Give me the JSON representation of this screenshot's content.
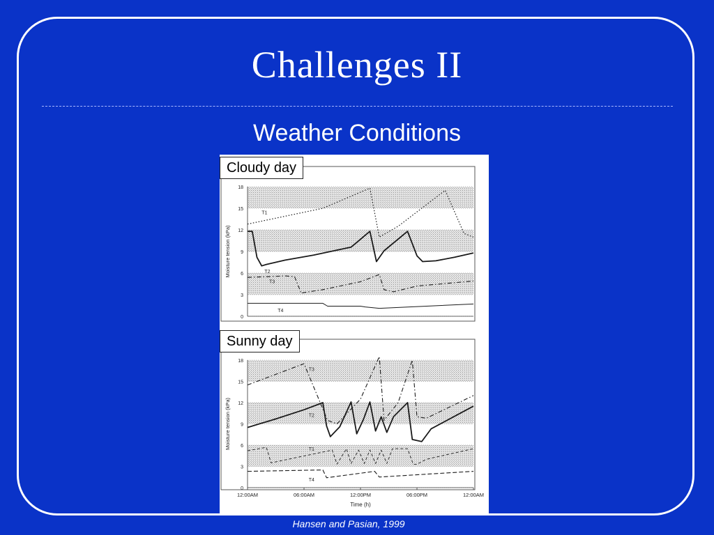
{
  "slide": {
    "title": "Challenges II",
    "subtitle": "Weather Conditions",
    "citation": "Hansen and Pasian, 1999"
  },
  "chart_data": [
    {
      "type": "line",
      "tag": "Cloudy day",
      "ylabel": "Moisture tension (kPa)",
      "ylim": [
        0,
        18
      ],
      "yticks": [
        0,
        3,
        6,
        9,
        12,
        15,
        18
      ],
      "xlim": [
        0,
        24
      ],
      "series": [
        {
          "name": "T1",
          "style": "dotted",
          "x": [
            0,
            8,
            13,
            14,
            16,
            21,
            23,
            24
          ],
          "y": [
            12.8,
            15,
            17.8,
            11,
            12.5,
            17.5,
            11.5,
            11
          ]
        },
        {
          "name": "T2",
          "style": "solid",
          "x": [
            0,
            0.5,
            1,
            1.5,
            2,
            4,
            7,
            11,
            13,
            13.7,
            14.5,
            17,
            18,
            18.6,
            20,
            22,
            24
          ],
          "y": [
            11.8,
            11.8,
            8.2,
            7,
            7.2,
            7.8,
            8.5,
            9.6,
            11.8,
            7.6,
            9.1,
            11.8,
            8.4,
            7.6,
            7.7,
            8.2,
            8.8
          ]
        },
        {
          "name": "T3",
          "style": "dashdot",
          "x": [
            0,
            4,
            5,
            5.7,
            6,
            8,
            12,
            14,
            14.5,
            15.5,
            18,
            24
          ],
          "y": [
            5.4,
            5.6,
            5.5,
            3.2,
            3.3,
            3.7,
            4.8,
            5.8,
            3.7,
            3.4,
            4.2,
            4.9
          ]
        },
        {
          "name": "T4",
          "style": "solid-thin",
          "x": [
            0,
            8,
            8.5,
            12,
            12.5,
            14,
            24
          ],
          "y": [
            1.8,
            1.8,
            1.4,
            1.4,
            1.3,
            1.1,
            1.7
          ]
        }
      ]
    },
    {
      "type": "line",
      "tag": "Sunny day",
      "ylabel": "Moisture tension (kPa)",
      "xlabel": "Time (h)",
      "ylim": [
        0,
        18
      ],
      "yticks": [
        0,
        3,
        6,
        9,
        12,
        15,
        18
      ],
      "xlim": [
        0,
        24
      ],
      "xticks": [
        "12:00AM",
        "06:00AM",
        "12:00PM",
        "06:00PM",
        "12:00AM"
      ],
      "series": [
        {
          "name": "T3",
          "style": "dashdot",
          "x": [
            0,
            6,
            8.5,
            9.5,
            12,
            14,
            14.5,
            16,
            17.5,
            18,
            19,
            24
          ],
          "y": [
            14.5,
            17.5,
            9.5,
            9,
            12.5,
            18.5,
            9.5,
            12,
            18,
            10,
            9.8,
            13
          ]
        },
        {
          "name": "T2",
          "style": "solid",
          "x": [
            0,
            3,
            6,
            8,
            8.4,
            8.8,
            9.8,
            11,
            11.6,
            12.3,
            13,
            13.6,
            14.2,
            14.8,
            15.5,
            17,
            17.5,
            18.5,
            19.5,
            24
          ],
          "y": [
            8.5,
            9.7,
            11,
            12,
            8.7,
            7.2,
            8.6,
            12.1,
            7.6,
            9.6,
            12.1,
            8,
            10,
            7.8,
            10,
            12,
            6.8,
            6.5,
            8.3,
            11.5
          ]
        },
        {
          "name": "T1",
          "style": "dashed-thin",
          "x": [
            0,
            2,
            2.5,
            9,
            9.5,
            10.5,
            11,
            11.8,
            12.4,
            13,
            13.6,
            14.2,
            14.8,
            15.4,
            17,
            17.6,
            18,
            19,
            24
          ],
          "y": [
            5.2,
            5.7,
            3.5,
            5.3,
            3.3,
            5.5,
            3.4,
            5.3,
            3.4,
            5.3,
            3.4,
            5.3,
            3.4,
            5.5,
            5.5,
            3.3,
            3.3,
            4,
            5.5
          ]
        },
        {
          "name": "T4",
          "style": "dashed",
          "x": [
            0,
            8,
            8.4,
            13.5,
            14,
            24
          ],
          "y": [
            2.3,
            2.5,
            1.4,
            2.3,
            1.5,
            2.3
          ]
        }
      ]
    }
  ]
}
